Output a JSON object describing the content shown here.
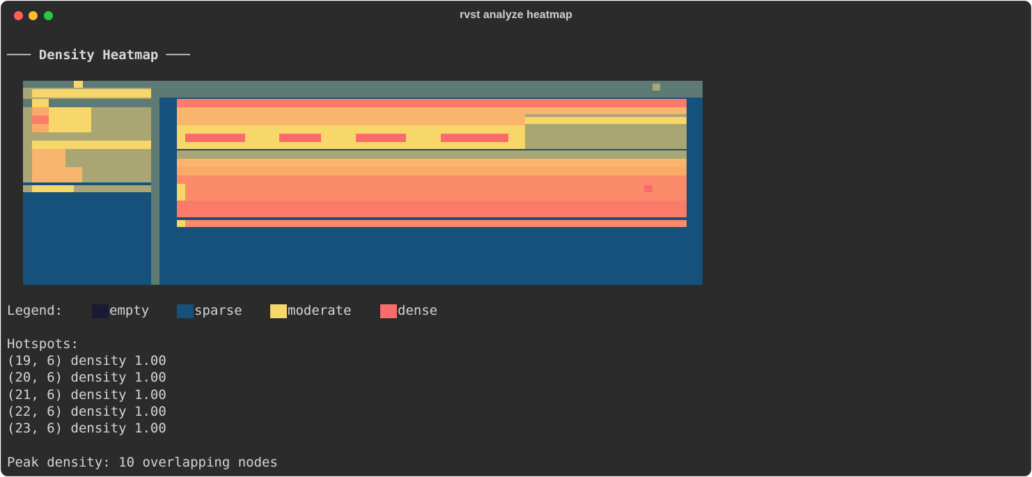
{
  "window": {
    "title": "rvst analyze heatmap"
  },
  "heading": "─── Density Heatmap ───",
  "colors": {
    "empty": "#1b1a33",
    "sparse": "#16517b",
    "moderate": "#f7d66a",
    "dense": "#fb6b6b"
  },
  "legend": {
    "label": "Legend:",
    "items": [
      {
        "name": "empty",
        "color": "#1b1a33"
      },
      {
        "name": "sparse",
        "color": "#16517b"
      },
      {
        "name": "moderate",
        "color": "#f7d66a"
      },
      {
        "name": "dense",
        "color": "#fb6b6b"
      }
    ]
  },
  "hotspots": {
    "label": "Hotspots:",
    "items": [
      "(19, 6) density 1.00",
      "(20, 6) density 1.00",
      "(21, 6) density 1.00",
      "(22, 6) density 1.00",
      "(23, 6) density 1.00"
    ]
  },
  "peak": "Peak density: 10 overlapping nodes"
}
